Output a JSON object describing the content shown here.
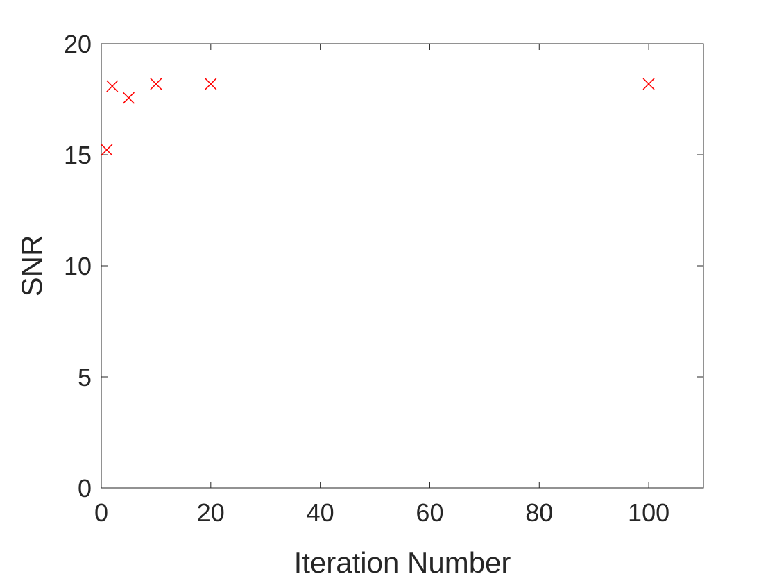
{
  "chart_data": {
    "type": "scatter",
    "x_label": "Iteration Number",
    "y_label": "SNR",
    "series": [
      {
        "name": "SNR",
        "color": "#ff0000",
        "marker": "x",
        "x": [
          1,
          2,
          5,
          10,
          20,
          100
        ],
        "values": [
          15.22,
          18.09,
          17.56,
          18.19,
          18.19,
          18.19
        ]
      }
    ],
    "xlim": [
      0,
      110
    ],
    "ylim": [
      0,
      20
    ],
    "xticks": [
      0,
      20,
      40,
      60,
      80,
      100
    ],
    "yticks": [
      0,
      5,
      10,
      15,
      20
    ],
    "box": true
  }
}
